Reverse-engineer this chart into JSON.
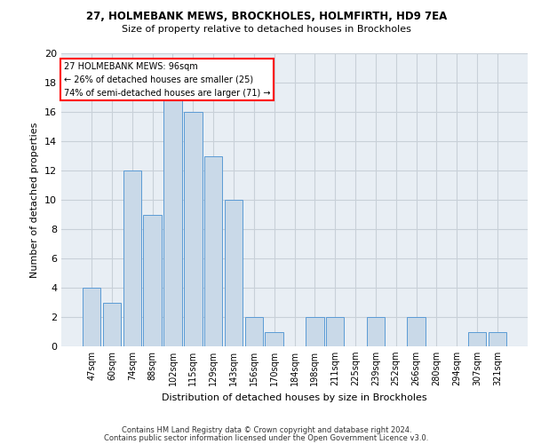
{
  "title1": "27, HOLMEBANK MEWS, BROCKHOLES, HOLMFIRTH, HD9 7EA",
  "title2": "Size of property relative to detached houses in Brockholes",
  "xlabel": "Distribution of detached houses by size in Brockholes",
  "ylabel": "Number of detached properties",
  "categories": [
    "47sqm",
    "60sqm",
    "74sqm",
    "88sqm",
    "102sqm",
    "115sqm",
    "129sqm",
    "143sqm",
    "156sqm",
    "170sqm",
    "184sqm",
    "198sqm",
    "211sqm",
    "225sqm",
    "239sqm",
    "252sqm",
    "266sqm",
    "280sqm",
    "294sqm",
    "307sqm",
    "321sqm"
  ],
  "values": [
    4,
    3,
    12,
    9,
    17,
    16,
    13,
    10,
    2,
    1,
    0,
    2,
    2,
    0,
    2,
    0,
    2,
    0,
    0,
    1,
    1
  ],
  "bar_color": "#c9d9e8",
  "bar_edge_color": "#5b9bd5",
  "annotation_line1": "27 HOLMEBANK MEWS: 96sqm",
  "annotation_line2": "← 26% of detached houses are smaller (25)",
  "annotation_line3": "74% of semi-detached houses are larger (71) →",
  "annotation_box_color": "white",
  "annotation_box_edgecolor": "red",
  "ylim": [
    0,
    20
  ],
  "yticks": [
    0,
    2,
    4,
    6,
    8,
    10,
    12,
    14,
    16,
    18,
    20
  ],
  "grid_color": "#c8d0d8",
  "bg_color": "#e8eef4",
  "footer1": "Contains HM Land Registry data © Crown copyright and database right 2024.",
  "footer2": "Contains public sector information licensed under the Open Government Licence v3.0."
}
